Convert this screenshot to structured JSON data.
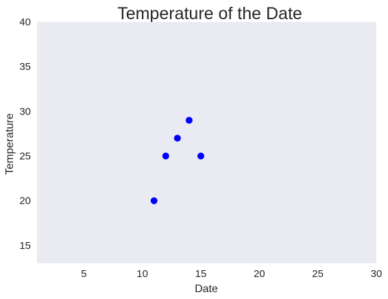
{
  "chart_data": {
    "type": "scatter",
    "title": "Temperature of the Date",
    "xlabel": "Date",
    "ylabel": "Temperature",
    "xlim": [
      1,
      30
    ],
    "ylim": [
      13,
      40
    ],
    "xticks": [
      5,
      10,
      15,
      20,
      25,
      30
    ],
    "yticks": [
      15,
      20,
      25,
      30,
      35,
      40
    ],
    "grid": false,
    "series": [
      {
        "color": "#0000ff",
        "points": [
          {
            "x": 11,
            "y": 20
          },
          {
            "x": 12,
            "y": 25
          },
          {
            "x": 13,
            "y": 27
          },
          {
            "x": 14,
            "y": 29
          },
          {
            "x": 15,
            "y": 25
          }
        ]
      }
    ]
  }
}
